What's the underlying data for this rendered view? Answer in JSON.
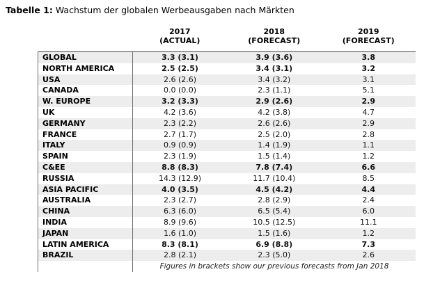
{
  "title": {
    "prefix": "Tabelle 1:",
    "text": " Wachstum der globalen Werbeausgaben nach Märkten"
  },
  "table": {
    "columns": [
      {
        "year": "2017",
        "type": "(ACTUAL)"
      },
      {
        "year": "2018",
        "type": "(FORECAST)"
      },
      {
        "year": "2019",
        "type": "(FORECAST)"
      }
    ],
    "rows": [
      {
        "label": "GLOBAL",
        "bold": true,
        "values": [
          "3.3 (3.1)",
          "3.9 (3.6)",
          "3.8"
        ]
      },
      {
        "label": "NORTH AMERICA",
        "bold": true,
        "values": [
          "2.5 (2.5)",
          "3.4 (3.1)",
          "3.2"
        ]
      },
      {
        "label": "USA",
        "bold": false,
        "values": [
          "2.6 (2.6)",
          "3.4 (3.2)",
          "3.1"
        ]
      },
      {
        "label": "CANADA",
        "bold": false,
        "values": [
          "0.0 (0.0)",
          "2.3 (1.1)",
          "5.1"
        ]
      },
      {
        "label": "W. EUROPE",
        "bold": true,
        "values": [
          "3.2 (3.3)",
          "2.9 (2.6)",
          "2.9"
        ]
      },
      {
        "label": "UK",
        "bold": false,
        "values": [
          "4.2 (3.6)",
          "4.2 (3.8)",
          "4.7"
        ]
      },
      {
        "label": "GERMANY",
        "bold": false,
        "values": [
          "2.3 (2.2)",
          "2.6 (2.6)",
          "2.9"
        ]
      },
      {
        "label": "FRANCE",
        "bold": false,
        "values": [
          "2.7 (1.7)",
          "2.5 (2.0)",
          "2.8"
        ]
      },
      {
        "label": "ITALY",
        "bold": false,
        "values": [
          "0.9 (0.9)",
          "1.4 (1.9)",
          "1.1"
        ]
      },
      {
        "label": "SPAIN",
        "bold": false,
        "values": [
          "2.3 (1.9)",
          "1.5 (1.4)",
          "1.2"
        ]
      },
      {
        "label": "C&EE",
        "bold": true,
        "values": [
          "8.8 (8.3)",
          "7.8 (7.4)",
          "6.6"
        ]
      },
      {
        "label": "RUSSIA",
        "bold": false,
        "values": [
          "14.3 (12.9)",
          "11.7 (10.4)",
          "8.5"
        ]
      },
      {
        "label": "ASIA PACIFIC",
        "bold": true,
        "values": [
          "4.0 (3.5)",
          "4.5 (4.2)",
          "4.4"
        ]
      },
      {
        "label": "AUSTRALIA",
        "bold": false,
        "values": [
          "2.3 (2.7)",
          "2.8 (2.9)",
          "2.4"
        ]
      },
      {
        "label": "CHINA",
        "bold": false,
        "values": [
          "6.3 (6.0)",
          "6.5 (5.4)",
          "6.0"
        ]
      },
      {
        "label": "INDIA",
        "bold": false,
        "values": [
          "8.9 (9.6)",
          "10.5 (12.5)",
          "11.1"
        ]
      },
      {
        "label": "JAPAN",
        "bold": false,
        "values": [
          "1.6 (1.0)",
          "1.5 (1.6)",
          "1.2"
        ]
      },
      {
        "label": "LATIN AMERICA",
        "bold": true,
        "values": [
          "8.3 (8.1)",
          "6.9 (8.8)",
          "7.3"
        ]
      },
      {
        "label": "BRAZIL",
        "bold": false,
        "values": [
          "2.8 (2.1)",
          "2.3 (5.0)",
          "2.6"
        ]
      }
    ],
    "footnote": "Figures in brackets show our previous forecasts from Jan 2018"
  },
  "colors": {
    "stripe": "#ededed",
    "divider": "#6e6e6e",
    "header_rule": "#3f3f3f"
  },
  "chart_data": {
    "type": "table",
    "title": "Tabelle 1: Wachstum der globalen Werbeausgaben nach Märkten",
    "columns": [
      "",
      "2017 (ACTUAL)",
      "2018 (FORECAST)",
      "2019 (FORECAST)"
    ],
    "rows": [
      [
        "GLOBAL",
        "3.3 (3.1)",
        "3.9 (3.6)",
        "3.8"
      ],
      [
        "NORTH AMERICA",
        "2.5 (2.5)",
        "3.4 (3.1)",
        "3.2"
      ],
      [
        "USA",
        "2.6 (2.6)",
        "3.4 (3.2)",
        "3.1"
      ],
      [
        "CANADA",
        "0.0 (0.0)",
        "2.3 (1.1)",
        "5.1"
      ],
      [
        "W. EUROPE",
        "3.2 (3.3)",
        "2.9 (2.6)",
        "2.9"
      ],
      [
        "UK",
        "4.2 (3.6)",
        "4.2 (3.8)",
        "4.7"
      ],
      [
        "GERMANY",
        "2.3 (2.2)",
        "2.6 (2.6)",
        "2.9"
      ],
      [
        "FRANCE",
        "2.7 (1.7)",
        "2.5 (2.0)",
        "2.8"
      ],
      [
        "ITALY",
        "0.9 (0.9)",
        "1.4 (1.9)",
        "1.1"
      ],
      [
        "SPAIN",
        "2.3 (1.9)",
        "1.5 (1.4)",
        "1.2"
      ],
      [
        "C&EE",
        "8.8 (8.3)",
        "7.8 (7.4)",
        "6.6"
      ],
      [
        "RUSSIA",
        "14.3 (12.9)",
        "11.7 (10.4)",
        "8.5"
      ],
      [
        "ASIA PACIFIC",
        "4.0 (3.5)",
        "4.5 (4.2)",
        "4.4"
      ],
      [
        "AUSTRALIA",
        "2.3 (2.7)",
        "2.8 (2.9)",
        "2.4"
      ],
      [
        "CHINA",
        "6.3 (6.0)",
        "6.5 (5.4)",
        "6.0"
      ],
      [
        "INDIA",
        "8.9 (9.6)",
        "10.5 (12.5)",
        "11.1"
      ],
      [
        "JAPAN",
        "1.6 (1.0)",
        "1.5 (1.6)",
        "1.2"
      ],
      [
        "LATIN AMERICA",
        "8.3 (8.1)",
        "6.9 (8.8)",
        "7.3"
      ],
      [
        "BRAZIL",
        "2.8 (2.1)",
        "2.3 (5.0)",
        "2.6"
      ]
    ],
    "footnote": "Figures in brackets show our previous forecasts from Jan 2018"
  }
}
